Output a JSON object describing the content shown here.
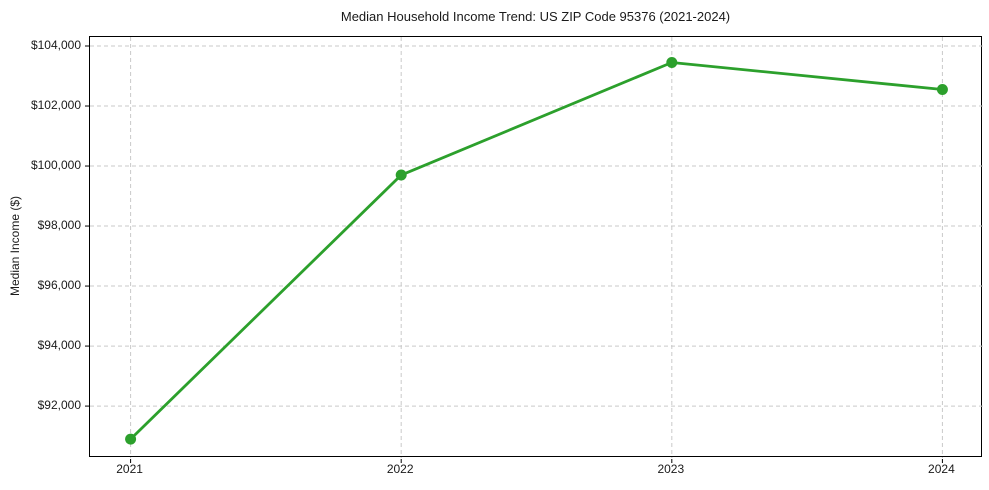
{
  "chart_data": {
    "type": "line",
    "title": "Median Household Income Trend: US ZIP Code 95376 (2021-2024)",
    "ylabel": "Median Income ($)",
    "xlabel": "",
    "x": [
      2021,
      2022,
      2023,
      2024
    ],
    "values": [
      90900,
      99700,
      103450,
      102550
    ],
    "xticks": [
      {
        "value": 2021,
        "label": "2021"
      },
      {
        "value": 2022,
        "label": "2022"
      },
      {
        "value": 2023,
        "label": "2023"
      },
      {
        "value": 2024,
        "label": "2024"
      }
    ],
    "yticks": [
      {
        "value": 92000,
        "label": "$92,000"
      },
      {
        "value": 94000,
        "label": "$94,000"
      },
      {
        "value": 96000,
        "label": "$96,000"
      },
      {
        "value": 98000,
        "label": "$98,000"
      },
      {
        "value": 100000,
        "label": "$100,000"
      },
      {
        "value": 102000,
        "label": "$102,000"
      },
      {
        "value": 104000,
        "label": "$104,000"
      }
    ],
    "xlim": [
      2020.85,
      2024.15
    ],
    "ylim": [
      90270,
      104300
    ],
    "grid": true,
    "legend_position": "none",
    "style": {
      "line_color": "#2ca02c",
      "marker_color": "#2ca02c",
      "line_width": 2.8,
      "marker_radius": 5.5,
      "grid_color": "#c9c9c9",
      "grid_dash": "4 3",
      "spine_color": "#000000",
      "text_color": "#1a1a1a",
      "background": "#ffffff"
    }
  }
}
